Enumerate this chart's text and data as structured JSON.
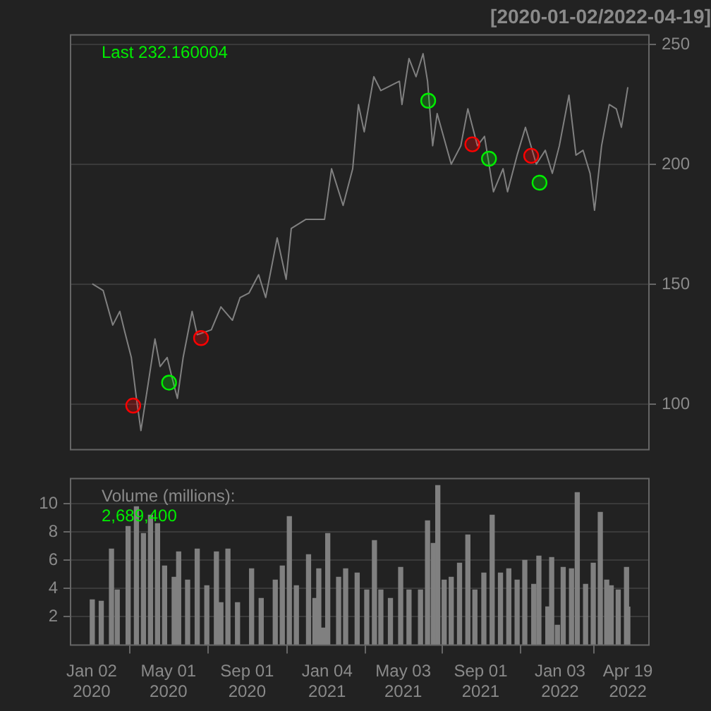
{
  "chart_data": [
    {
      "type": "line",
      "title": "[2020-01-02/2022-04-19]",
      "annotations": [
        "Last 232.160004"
      ],
      "xlim": [
        "2019-11-30",
        "2022-05-22"
      ],
      "ylim": [
        81,
        254
      ],
      "yticks": [
        100,
        150,
        200,
        250
      ],
      "grid": "y",
      "legend": false,
      "tick_labels": "y",
      "series": [
        {
          "color": "#808080",
          "x": [
            "2020-01-03",
            "2020-01-20",
            "2020-02-04",
            "2020-02-15",
            "2020-02-22",
            "2020-03-04",
            "2020-03-12",
            "2020-03-19",
            "2020-03-30",
            "2020-04-10",
            "2020-04-18",
            "2020-04-29",
            "2020-05-06",
            "2020-05-15",
            "2020-05-24",
            "2020-06-07",
            "2020-06-15",
            "2020-07-07",
            "2020-07-22",
            "2020-08-09",
            "2020-08-21",
            "2020-09-04",
            "2020-09-19",
            "2020-09-30",
            "2020-10-18",
            "2020-11-01",
            "2020-11-09",
            "2020-12-02",
            "2020-12-31",
            "2021-01-11",
            "2021-01-29",
            "2021-02-13",
            "2021-02-22",
            "2021-03-03",
            "2021-03-18",
            "2021-03-29",
            "2021-04-27",
            "2021-05-01",
            "2021-05-12",
            "2021-05-23",
            "2021-06-03",
            "2021-06-10",
            "2021-06-18",
            "2021-06-25",
            "2021-07-17",
            "2021-08-01",
            "2021-08-12",
            "2021-08-27",
            "2021-09-07",
            "2021-09-21",
            "2021-10-06",
            "2021-10-13",
            "2021-10-28",
            "2021-11-10",
            "2021-11-27",
            "2021-12-11",
            "2021-12-22",
            "2022-01-02",
            "2022-01-17",
            "2022-01-28",
            "2022-02-08",
            "2022-02-19",
            "2022-02-26",
            "2022-03-09",
            "2022-03-21",
            "2022-04-01",
            "2022-04-09",
            "2022-04-19"
          ],
          "values": [
            150.2,
            147.4,
            133,
            138.7,
            131,
            119.5,
            102.4,
            89,
            108,
            127.2,
            115.7,
            119.5,
            111.8,
            102.4,
            119.5,
            138.7,
            129,
            131,
            140.6,
            135,
            144.5,
            146.4,
            154,
            144.5,
            169.4,
            152.1,
            173.3,
            177.1,
            177.1,
            198.2,
            182.9,
            198.2,
            225,
            213.6,
            236.6,
            230.8,
            234.7,
            225,
            244.2,
            236.6,
            246.2,
            234.7,
            207.8,
            221.2,
            200.1,
            207.8,
            223.2,
            207.8,
            211.7,
            188.6,
            198.2,
            188.6,
            203.9,
            215.5,
            200.1,
            205.9,
            196.3,
            207.8,
            228.9,
            203.9,
            205.9,
            196.3,
            180.9,
            207.8,
            225,
            223.2,
            215.5,
            232.2
          ]
        },
        {
          "type": "scatter",
          "color": "#ff0000",
          "marker": "circle",
          "x": [
            "2020-03-07",
            "2020-06-21",
            "2021-08-19",
            "2021-11-19"
          ],
          "values": [
            99.4,
            127.6,
            208.4,
            203.6
          ]
        },
        {
          "type": "scatter",
          "color": "#00ee00",
          "marker": "circle",
          "x": [
            "2020-05-02",
            "2021-06-11",
            "2021-09-14",
            "2021-12-02"
          ],
          "values": [
            109,
            226.6,
            202.4,
            192.4
          ]
        }
      ]
    },
    {
      "type": "bar",
      "annotations": [
        "Volume (millions):",
        "2,689,400"
      ],
      "xlim": [
        "2019-11-30",
        "2022-05-22"
      ],
      "xticks": [
        {
          "value": "2020-01-02",
          "label": "Jan 02\n2020"
        },
        {
          "value": "2020-05-01",
          "label": "May 01\n2020"
        },
        {
          "value": "2020-09-01",
          "label": "Sep 01\n2020"
        },
        {
          "value": "2021-01-04",
          "label": "Jan 04\n2021"
        },
        {
          "value": "2021-05-03",
          "label": "May 03\n2021"
        },
        {
          "value": "2021-09-01",
          "label": "Sep 01\n2021"
        },
        {
          "value": "2022-01-03",
          "label": "Jan 03\n2022"
        },
        {
          "value": "2022-04-19",
          "label": "Apr 19\n2022"
        }
      ],
      "ylim": [
        0,
        11.8
      ],
      "yticks": [
        2,
        4,
        6,
        8,
        10
      ],
      "grid": "y",
      "legend": false,
      "series": [
        {
          "color": "#808080",
          "x": [
            "2020-01-03",
            "2020-01-17",
            "2020-02-02",
            "2020-02-11",
            "2020-02-28",
            "2020-03-12",
            "2020-03-23",
            "2020-04-03",
            "2020-04-14",
            "2020-04-25",
            "2020-05-10",
            "2020-05-17",
            "2020-05-31",
            "2020-06-15",
            "2020-06-30",
            "2020-07-15",
            "2020-07-22",
            "2020-08-02",
            "2020-08-17",
            "2020-09-08",
            "2020-09-23",
            "2020-10-15",
            "2020-10-26",
            "2020-11-06",
            "2020-11-17",
            "2020-12-06",
            "2020-12-16",
            "2020-12-22",
            "2020-12-28",
            "2021-01-05",
            "2021-01-22",
            "2021-02-02",
            "2021-02-20",
            "2021-03-07",
            "2021-03-19",
            "2021-03-29",
            "2021-04-13",
            "2021-04-29",
            "2021-05-12",
            "2021-05-30",
            "2021-06-10",
            "2021-06-19",
            "2021-06-26",
            "2021-07-06",
            "2021-07-17",
            "2021-07-30",
            "2021-08-12",
            "2021-08-23",
            "2021-09-06",
            "2021-09-19",
            "2021-10-02",
            "2021-10-15",
            "2021-10-28",
            "2021-11-09",
            "2021-11-23",
            "2021-12-01",
            "2021-12-15",
            "2021-12-21",
            "2021-12-30",
            "2022-01-08",
            "2022-01-21",
            "2022-01-30",
            "2022-02-12",
            "2022-02-24",
            "2022-03-07",
            "2022-03-17",
            "2022-03-24",
            "2022-04-04",
            "2022-04-17",
            "2022-04-19"
          ],
          "values": [
            3.2,
            3.1,
            6.8,
            3.9,
            8.4,
            9.8,
            7.9,
            9.2,
            8.6,
            5.6,
            4.8,
            6.6,
            4.6,
            6.8,
            4.2,
            6.6,
            3.0,
            6.8,
            3.0,
            5.4,
            3.3,
            4.6,
            5.6,
            9.1,
            4.2,
            6.4,
            3.3,
            5.4,
            1.2,
            7.9,
            4.8,
            5.4,
            5.1,
            3.9,
            7.4,
            3.9,
            3.3,
            5.5,
            3.9,
            3.9,
            8.8,
            7.2,
            11.3,
            4.6,
            4.8,
            5.8,
            7.8,
            3.9,
            5.1,
            9.2,
            5.1,
            5.4,
            4.6,
            6.0,
            4.3,
            6.3,
            2.7,
            6.2,
            1.4,
            5.5,
            5.4,
            10.8,
            4.3,
            5.8,
            9.4,
            4.6,
            4.2,
            3.9,
            5.5,
            2.69
          ]
        }
      ]
    }
  ]
}
